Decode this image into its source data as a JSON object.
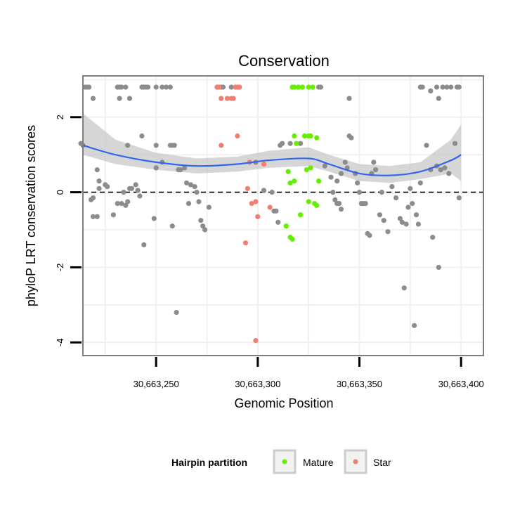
{
  "chart_data": {
    "type": "scatter",
    "title": "Conservation",
    "xlabel": "Genomic Position",
    "ylabel": "phyloP LRT conservation scores",
    "xlim": [
      30663214,
      30663411
    ],
    "ylim": [
      -4.35,
      3.1
    ],
    "x_ticks": [
      {
        "value": 30663250,
        "label": "30,663,250"
      },
      {
        "value": 30663300,
        "label": "30,663,300"
      },
      {
        "value": 30663350,
        "label": "30,663,350"
      },
      {
        "value": 30663400,
        "label": "30,663,400"
      }
    ],
    "y_ticks": [
      {
        "value": 2,
        "label": "2"
      },
      {
        "value": 0,
        "label": "0"
      },
      {
        "value": -2,
        "label": "-2"
      },
      {
        "value": -4,
        "label": "-4"
      }
    ],
    "reference_line": {
      "y": 0,
      "style": "dashed"
    },
    "legend": {
      "title": "Hairpin partition",
      "position": "bottom",
      "entries": [
        {
          "label": "Mature",
          "color": "#66ee00"
        },
        {
          "label": "Star",
          "color": "#f07f72"
        }
      ]
    },
    "colors": {
      "other": "#8c8c8c",
      "Mature": "#66ee00",
      "Star": "#f07f72",
      "smooth": "#3366ee",
      "band": "#c8c8c8"
    },
    "series": [
      {
        "name": "Other",
        "points": [
          [
            30663215,
            2.8
          ],
          [
            30663216,
            2.8
          ],
          [
            30663217,
            2.8
          ],
          [
            30663219,
            2.5
          ],
          [
            30663231,
            2.8
          ],
          [
            30663232,
            2.8
          ],
          [
            30663233,
            2.8
          ],
          [
            30663235,
            2.8
          ],
          [
            30663243,
            2.8
          ],
          [
            30663244,
            2.8
          ],
          [
            30663245,
            2.8
          ],
          [
            30663246,
            2.8
          ],
          [
            30663250,
            2.8
          ],
          [
            30663253,
            2.8
          ],
          [
            30663255,
            2.8
          ],
          [
            30663257,
            2.8
          ],
          [
            30663232,
            2.5
          ],
          [
            30663237,
            2.5
          ],
          [
            30663280,
            2.8
          ],
          [
            30663282,
            2.8
          ],
          [
            30663283,
            2.8
          ],
          [
            30663287,
            2.8
          ],
          [
            30663330,
            2.8
          ],
          [
            30663331,
            2.8
          ],
          [
            30663345,
            2.5
          ],
          [
            30663380,
            2.8
          ],
          [
            30663381,
            2.8
          ],
          [
            30663389,
            2.5
          ],
          [
            30663391,
            2.8
          ],
          [
            30663393,
            2.8
          ],
          [
            30663395,
            2.8
          ],
          [
            30663398,
            2.8
          ],
          [
            30663399,
            2.8
          ],
          [
            30663385,
            2.7
          ],
          [
            30663388,
            2.8
          ],
          [
            30663213,
            1.3
          ],
          [
            30663214,
            1.25
          ],
          [
            30663243,
            1.5
          ],
          [
            30663236,
            1.25
          ],
          [
            30663250,
            1.25
          ],
          [
            30663250,
            0.65
          ],
          [
            30663257,
            1.25
          ],
          [
            30663258,
            1.25
          ],
          [
            30663259,
            1.25
          ],
          [
            30663264,
            0.65
          ],
          [
            30663253,
            0.8
          ],
          [
            30663261,
            0.6
          ],
          [
            30663262,
            0.6
          ],
          [
            30663221,
            0.6
          ],
          [
            30663222,
            0.3
          ],
          [
            30663222,
            0.1
          ],
          [
            30663218,
            -0.2
          ],
          [
            30663219,
            -0.15
          ],
          [
            30663225,
            0.2
          ],
          [
            30663226,
            0.15
          ],
          [
            30663231,
            -0.3
          ],
          [
            30663233,
            -0.3
          ],
          [
            30663234,
            0.0
          ],
          [
            30663235,
            -0.35
          ],
          [
            30663236,
            -0.25
          ],
          [
            30663237,
            0.1
          ],
          [
            30663238,
            0.1
          ],
          [
            30663240,
            0.2
          ],
          [
            30663241,
            0.05
          ],
          [
            30663242,
            -0.1
          ],
          [
            30663249,
            -0.7
          ],
          [
            30663229,
            -0.6
          ],
          [
            30663219,
            -0.65
          ],
          [
            30663221,
            -0.65
          ],
          [
            30663244,
            -1.4
          ],
          [
            30663258,
            -0.9
          ],
          [
            30663260,
            -3.2
          ],
          [
            30663265,
            0.25
          ],
          [
            30663267,
            0.2
          ],
          [
            30663269,
            0.15
          ],
          [
            30663270,
            0.0
          ],
          [
            30663271,
            -0.25
          ],
          [
            30663272,
            -0.75
          ],
          [
            30663273,
            -0.9
          ],
          [
            30663274,
            -1.0
          ],
          [
            30663276,
            -0.4
          ],
          [
            30663266,
            -0.3
          ],
          [
            30663299,
            0.8
          ],
          [
            30663303,
            0.05
          ],
          [
            30663307,
            0.0
          ],
          [
            30663308,
            -0.5
          ],
          [
            30663309,
            -0.5
          ],
          [
            30663310,
            -0.8
          ],
          [
            30663311,
            1.25
          ],
          [
            30663312,
            1.3
          ],
          [
            30663316,
            1.3
          ],
          [
            30663321,
            1.3
          ],
          [
            30663333,
            0.7
          ],
          [
            30663336,
            0.4
          ],
          [
            30663337,
            0.0
          ],
          [
            30663338,
            -0.2
          ],
          [
            30663339,
            -0.3
          ],
          [
            30663340,
            -0.3
          ],
          [
            30663341,
            -0.45
          ],
          [
            30663343,
            0.8
          ],
          [
            30663344,
            0.65
          ],
          [
            30663345,
            1.5
          ],
          [
            30663346,
            1.45
          ],
          [
            30663348,
            0.5
          ],
          [
            30663349,
            0.25
          ],
          [
            30663350,
            0.0
          ],
          [
            30663351,
            -0.3
          ],
          [
            30663352,
            -0.3
          ],
          [
            30663353,
            -0.3
          ],
          [
            30663354,
            -1.1
          ],
          [
            30663355,
            -1.15
          ],
          [
            30663339,
            0.3
          ],
          [
            30663341,
            0.5
          ],
          [
            30663356,
            0.5
          ],
          [
            30663357,
            0.8
          ],
          [
            30663358,
            0.6
          ],
          [
            30663360,
            -0.6
          ],
          [
            30663361,
            0.0
          ],
          [
            30663362,
            -0.75
          ],
          [
            30663364,
            -1.05
          ],
          [
            30663366,
            0.15
          ],
          [
            30663368,
            -0.15
          ],
          [
            30663370,
            -0.7
          ],
          [
            30663371,
            -0.8
          ],
          [
            30663372,
            -2.55
          ],
          [
            30663373,
            -0.85
          ],
          [
            30663374,
            -0.4
          ],
          [
            30663375,
            0.1
          ],
          [
            30663376,
            -0.3
          ],
          [
            30663377,
            -3.55
          ],
          [
            30663378,
            -0.6
          ],
          [
            30663379,
            -0.85
          ],
          [
            30663380,
            0.25
          ],
          [
            30663383,
            1.25
          ],
          [
            30663385,
            0.6
          ],
          [
            30663386,
            -1.2
          ],
          [
            30663388,
            0.7
          ],
          [
            30663390,
            0.6
          ],
          [
            30663392,
            0.65
          ],
          [
            30663394,
            0.5
          ],
          [
            30663397,
            1.3
          ],
          [
            30663399,
            -0.15
          ],
          [
            30663389,
            -2.0
          ]
        ]
      },
      {
        "name": "Star",
        "points": [
          [
            30663280,
            2.8
          ],
          [
            30663281,
            2.8
          ],
          [
            30663282,
            2.5
          ],
          [
            30663285,
            2.5
          ],
          [
            30663287,
            2.5
          ],
          [
            30663288,
            2.5
          ],
          [
            30663289,
            2.8
          ],
          [
            30663290,
            2.8
          ],
          [
            30663291,
            2.8
          ],
          [
            30663282,
            1.25
          ],
          [
            30663290,
            1.5
          ],
          [
            30663296,
            0.8
          ],
          [
            30663303,
            0.75
          ],
          [
            30663295,
            0.1
          ],
          [
            30663297,
            -0.3
          ],
          [
            30663299,
            -0.25
          ],
          [
            30663306,
            -0.4
          ],
          [
            30663300,
            -0.65
          ],
          [
            30663294,
            -1.35
          ],
          [
            30663299,
            -3.95
          ]
        ]
      },
      {
        "name": "Mature",
        "points": [
          [
            30663317,
            2.8
          ],
          [
            30663318,
            2.8
          ],
          [
            30663320,
            2.8
          ],
          [
            30663322,
            2.8
          ],
          [
            30663325,
            2.8
          ],
          [
            30663327,
            2.8
          ],
          [
            30663318,
            1.5
          ],
          [
            30663323,
            1.5
          ],
          [
            30663325,
            1.5
          ],
          [
            30663326,
            1.5
          ],
          [
            30663329,
            1.45
          ],
          [
            30663319,
            1.3
          ],
          [
            30663315,
            0.55
          ],
          [
            30663316,
            0.25
          ],
          [
            30663318,
            0.3
          ],
          [
            30663324,
            0.6
          ],
          [
            30663326,
            0.65
          ],
          [
            30663330,
            0.3
          ],
          [
            30663325,
            -0.25
          ],
          [
            30663328,
            -0.3
          ],
          [
            30663329,
            -0.35
          ],
          [
            30663321,
            -0.6
          ],
          [
            30663314,
            -0.9
          ],
          [
            30663316,
            -1.2
          ],
          [
            30663317,
            -1.25
          ]
        ]
      }
    ],
    "smooth": [
      [
        30663214,
        1.25
      ],
      [
        30663230,
        1.0
      ],
      [
        30663250,
        0.8
      ],
      [
        30663270,
        0.7
      ],
      [
        30663290,
        0.75
      ],
      [
        30663305,
        0.85
      ],
      [
        30663325,
        0.9
      ],
      [
        30663335,
        0.75
      ],
      [
        30663350,
        0.5
      ],
      [
        30663365,
        0.45
      ],
      [
        30663380,
        0.55
      ],
      [
        30663395,
        0.85
      ],
      [
        30663400,
        1.0
      ]
    ],
    "band": [
      [
        30663214,
        1.0,
        2.1
      ],
      [
        30663230,
        0.75,
        1.4
      ],
      [
        30663250,
        0.6,
        1.05
      ],
      [
        30663270,
        0.5,
        0.9
      ],
      [
        30663290,
        0.55,
        0.95
      ],
      [
        30663305,
        0.65,
        1.1
      ],
      [
        30663325,
        0.7,
        1.2
      ],
      [
        30663335,
        0.55,
        1.0
      ],
      [
        30663350,
        0.3,
        0.75
      ],
      [
        30663365,
        0.25,
        0.7
      ],
      [
        30663380,
        0.35,
        0.8
      ],
      [
        30663395,
        0.5,
        1.4
      ],
      [
        30663400,
        0.3,
        1.8
      ]
    ]
  }
}
